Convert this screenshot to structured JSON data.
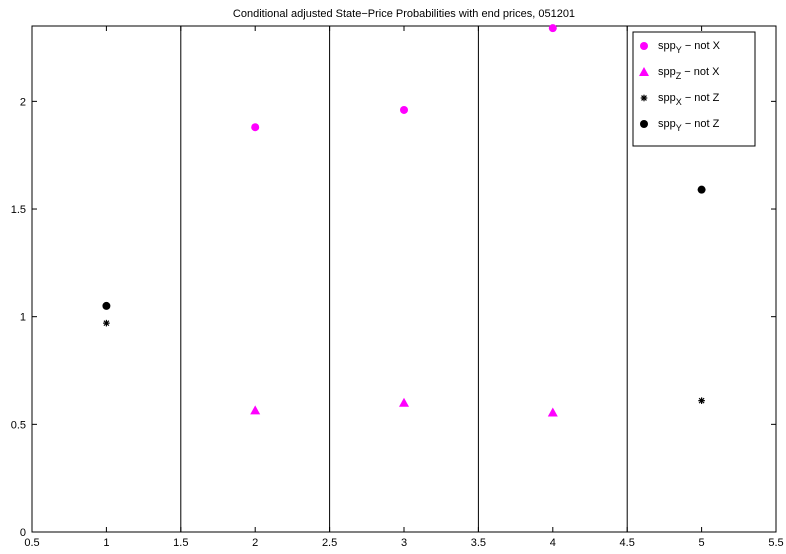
{
  "chart_data": {
    "type": "scatter",
    "title": "Conditional adjusted State−Price Probabilities with end prices, 051201",
    "xlabel": "",
    "ylabel": "",
    "xlim": [
      0.5,
      5.5
    ],
    "ylim": [
      0,
      2.35
    ],
    "xticks": [
      "0.5",
      "1",
      "1.5",
      "2",
      "2.5",
      "3",
      "3.5",
      "4",
      "4.5",
      "5",
      "5.5"
    ],
    "yticks": [
      "0",
      "0.5",
      "1",
      "1.5",
      "2"
    ],
    "vertical_lines_x": [
      1.5,
      2.5,
      3.5,
      4.5
    ],
    "grid": false,
    "legend_position": "top-right",
    "series": [
      {
        "name_base": "spp",
        "name_sub": "Y",
        "name_suffix": " − not X",
        "marker": "circle",
        "color": "#ff00ff",
        "x": [
          2,
          3,
          4
        ],
        "y": [
          1.88,
          1.96,
          2.34
        ]
      },
      {
        "name_base": "spp",
        "name_sub": "Z",
        "name_suffix": " − not X",
        "marker": "triangle",
        "color": "#ff00ff",
        "x": [
          2,
          3,
          4
        ],
        "y": [
          0.565,
          0.6,
          0.555
        ]
      },
      {
        "name_base": "spp",
        "name_sub": "X",
        "name_suffix": " − not Z",
        "marker": "star",
        "color": "#000000",
        "x": [
          1,
          5
        ],
        "y": [
          0.97,
          0.61
        ]
      },
      {
        "name_base": "spp",
        "name_sub": "Y",
        "name_suffix": " − not Z",
        "marker": "circle",
        "color": "#000000",
        "x": [
          1,
          5
        ],
        "y": [
          1.05,
          1.59
        ]
      }
    ]
  }
}
